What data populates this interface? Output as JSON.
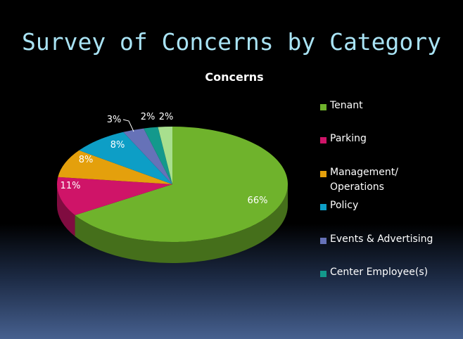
{
  "slide": {
    "title": "Survey of Concerns by Category"
  },
  "chart_data": {
    "type": "pie",
    "title": "Concerns",
    "legend_position": "right",
    "categories": [
      "Tenant",
      "Parking",
      "Management/ Operations",
      "Policy",
      "Events & Advertising",
      "Center Employee(s)",
      ""
    ],
    "values": [
      66,
      11,
      8,
      8,
      3,
      2,
      2
    ],
    "data_labels": [
      "66%",
      "11%",
      "8%",
      "8%",
      "3%",
      "2%",
      "2%"
    ],
    "colors": [
      "#6fb32c",
      "#cf1468",
      "#e4a00c",
      "#0d9ec6",
      "#6672b8",
      "#13998c",
      "#a8df8e"
    ]
  }
}
